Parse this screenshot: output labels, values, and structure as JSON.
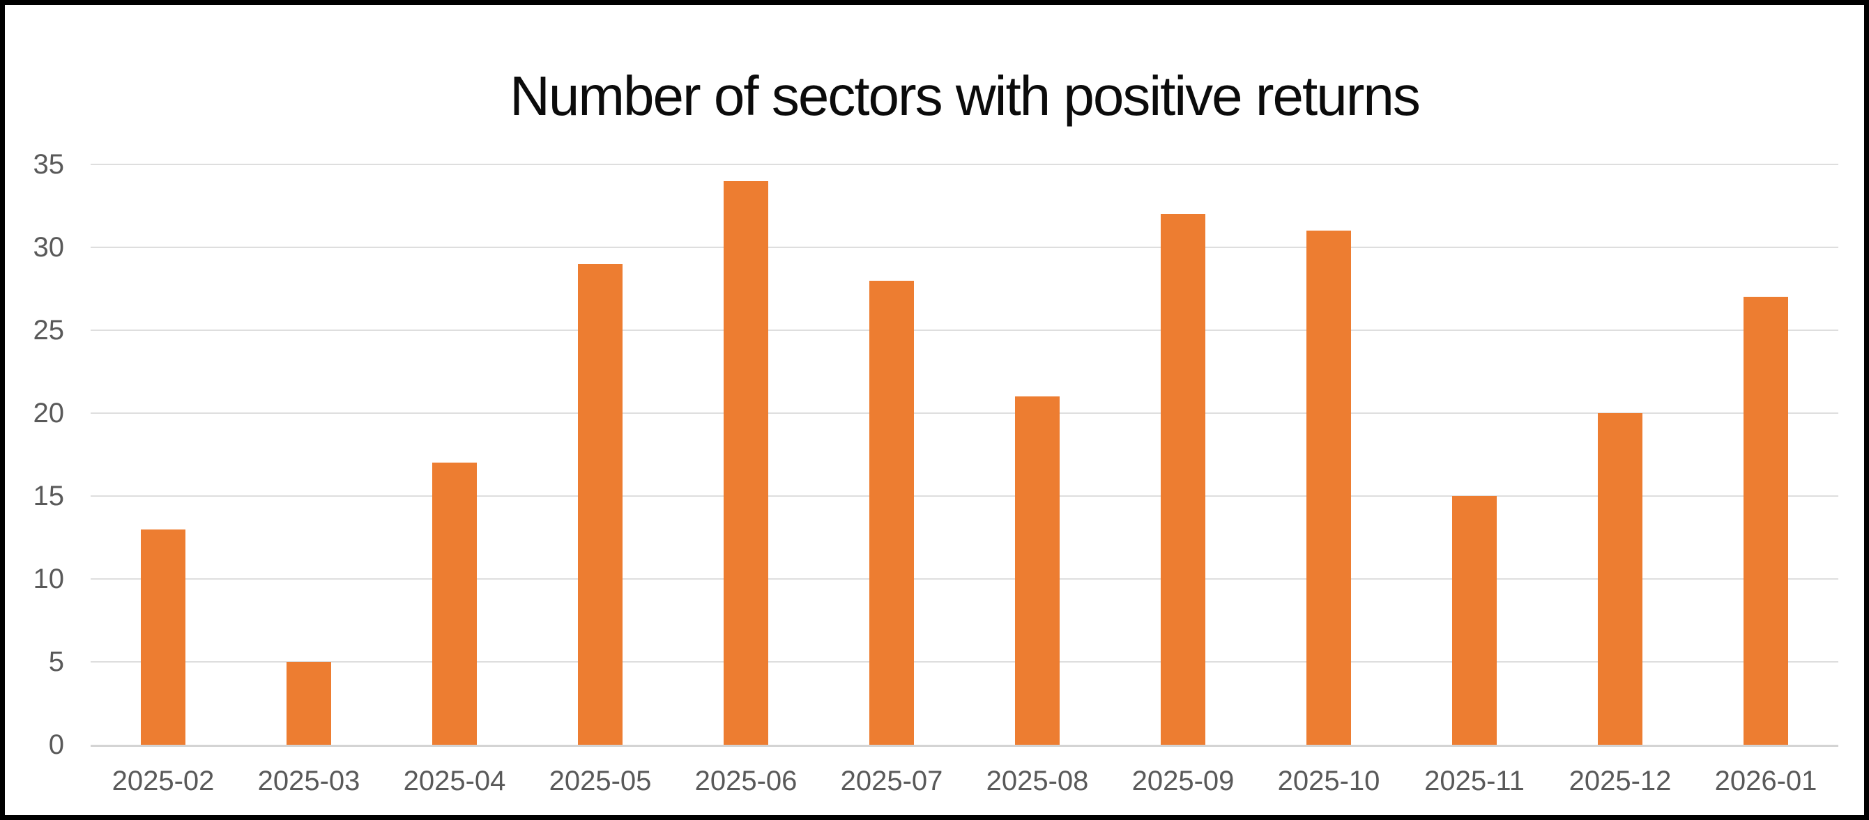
{
  "chart_data": {
    "type": "bar",
    "title": "Number of sectors with positive returns",
    "categories": [
      "2025-02",
      "2025-03",
      "2025-04",
      "2025-05",
      "2025-06",
      "2025-07",
      "2025-08",
      "2025-09",
      "2025-10",
      "2025-11",
      "2025-12",
      "2026-01"
    ],
    "values": [
      13,
      5,
      17,
      29,
      34,
      28,
      21,
      32,
      31,
      15,
      20,
      27
    ],
    "xlabel": "",
    "ylabel": "",
    "ylim": [
      0,
      35
    ],
    "yticks": [
      0,
      5,
      10,
      15,
      20,
      25,
      30,
      35
    ],
    "grid": true,
    "legend": false,
    "colors": {
      "bar": "#ED7D31",
      "gridline": "#DEDEDE",
      "axis_line": "#D4D4D4",
      "tick_label": "#595959",
      "title": "#0B0B0B",
      "background": "#FFFFFF",
      "frame_border": "#000000"
    }
  }
}
